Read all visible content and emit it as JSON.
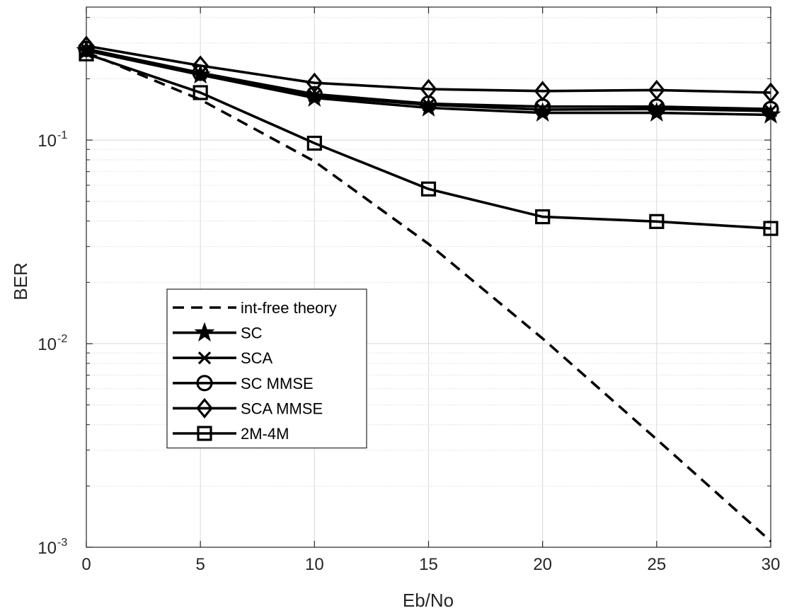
{
  "chart_data": {
    "type": "line",
    "title": "",
    "xlabel": "Eb/No",
    "ylabel": "BER",
    "xlim": [
      0,
      30
    ],
    "ylim": [
      0.001,
      0.45
    ],
    "yscale": "log",
    "grid": true,
    "minor_grid": true,
    "legend_position": "lower-left",
    "x": [
      0,
      5,
      10,
      15,
      20,
      25,
      30
    ],
    "x_tick_labels": [
      "0",
      "5",
      "10",
      "15",
      "20",
      "25",
      "30"
    ],
    "y_tick_labels": [
      {
        "base": "10",
        "exponent": "-1",
        "value": 0.1
      },
      {
        "base": "10",
        "exponent": "-2",
        "value": 0.01
      },
      {
        "base": "10",
        "exponent": "-3",
        "value": 0.001
      }
    ],
    "series": [
      {
        "name": "int-free theory",
        "marker": "none",
        "dash": true,
        "color": "#000000",
        "values": [
          0.27,
          0.158,
          0.0786,
          0.0309,
          0.0106,
          0.00339,
          0.00107
        ]
      },
      {
        "name": "SC",
        "marker": "star",
        "dash": false,
        "color": "#000000",
        "values": [
          0.275,
          0.209,
          0.161,
          0.144,
          0.136,
          0.136,
          0.133
        ]
      },
      {
        "name": "SCA",
        "marker": "x",
        "dash": false,
        "color": "#000000",
        "values": [
          0.28,
          0.212,
          0.165,
          0.149,
          0.141,
          0.142,
          0.139
        ]
      },
      {
        "name": "SC MMSE",
        "marker": "circle",
        "dash": false,
        "color": "#000000",
        "values": [
          0.28,
          0.214,
          0.168,
          0.151,
          0.146,
          0.146,
          0.142
        ]
      },
      {
        "name": "SCA MMSE",
        "marker": "diamond",
        "dash": false,
        "color": "#000000",
        "values": [
          0.29,
          0.232,
          0.191,
          0.178,
          0.174,
          0.176,
          0.171
        ]
      },
      {
        "name": "2M-4M",
        "marker": "square",
        "dash": false,
        "color": "#000000",
        "values": [
          0.265,
          0.171,
          0.0965,
          0.0575,
          0.042,
          0.0398,
          0.0368
        ]
      }
    ]
  }
}
